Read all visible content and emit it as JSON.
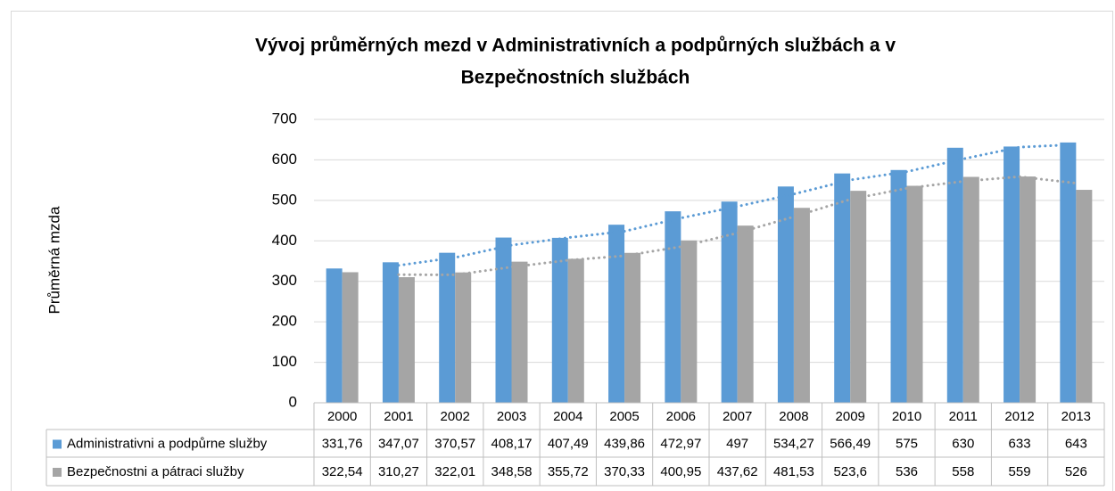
{
  "chart_data": {
    "type": "bar",
    "title": [
      "Vývoj průměrných mezd v Administrativních a podpůrných službách a v",
      "Bezpečnostních službách"
    ],
    "y_label": "Průměrná mzda",
    "categories": [
      "2000",
      "2001",
      "2002",
      "2003",
      "2004",
      "2005",
      "2006",
      "2007",
      "2008",
      "2009",
      "2010",
      "2011",
      "2012",
      "2013"
    ],
    "series": [
      {
        "name": "Administrativni a podpůrne služby",
        "color": "#5b9bd5",
        "values": [
          331.76,
          347.07,
          370.57,
          408.17,
          407.49,
          439.86,
          472.97,
          497,
          534.27,
          566.49,
          575,
          630,
          633,
          643
        ],
        "value_labels": [
          "331,76",
          "347,07",
          "370,57",
          "408,17",
          "407,49",
          "439,86",
          "472,97",
          "497",
          "534,27",
          "566,49",
          "575",
          "630",
          "633",
          "643"
        ]
      },
      {
        "name": "Bezpečnostni a pátraci služby",
        "color": "#a5a5a5",
        "values": [
          322.54,
          310.27,
          322.01,
          348.58,
          355.72,
          370.33,
          400.95,
          437.62,
          481.53,
          523.6,
          536,
          558,
          559,
          526
        ],
        "value_labels": [
          "322,54",
          "310,27",
          "322,01",
          "348,58",
          "355,72",
          "370,33",
          "400,95",
          "437,62",
          "481,53",
          "523,6",
          "536",
          "558",
          "559",
          "526"
        ]
      }
    ],
    "ylim": [
      0,
      700
    ],
    "yticks": [
      0,
      100,
      200,
      300,
      400,
      500,
      600,
      700
    ],
    "grid": true,
    "trendline_period": 2,
    "data_table": true
  }
}
